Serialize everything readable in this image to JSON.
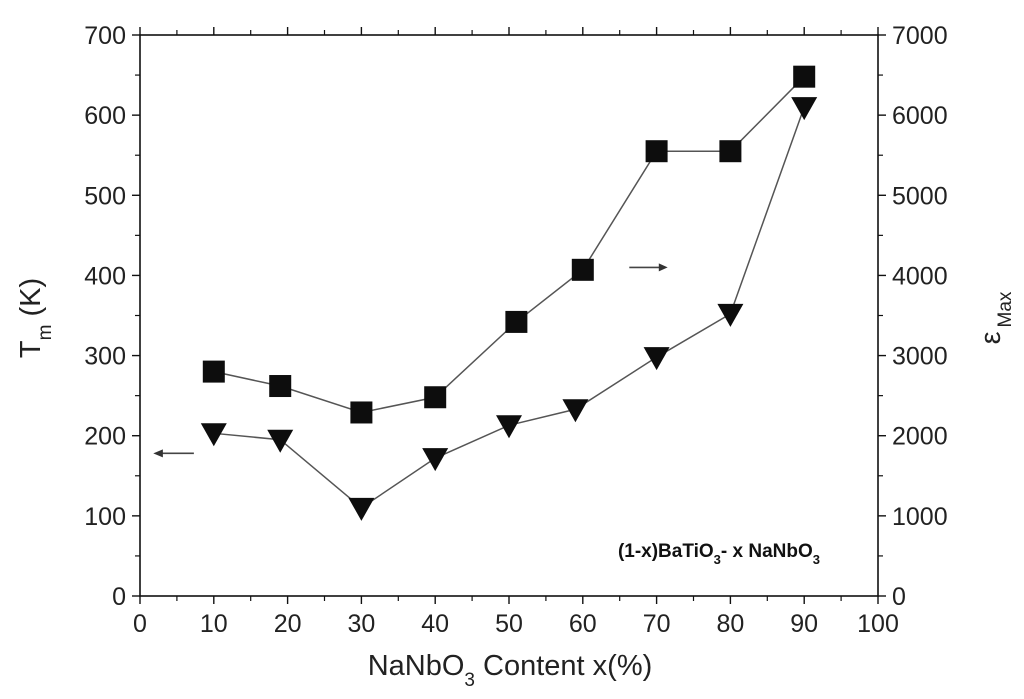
{
  "chart_data": {
    "type": "scatter",
    "xlabel": "NaNbO3 Content x(%)",
    "xlabel_parts": {
      "pre": "NaNbO",
      "sub": "3",
      "post": " Content x(%)"
    },
    "ylabel_left": {
      "main": "T",
      "sub": "m",
      "suffix": " (K)"
    },
    "ylabel_right": {
      "main": "ε",
      "sub": "Max"
    },
    "xlim": [
      0,
      100
    ],
    "ylim_left": [
      0,
      700
    ],
    "ylim_right": [
      0,
      7000
    ],
    "x_ticks": [
      "0",
      "10",
      "20",
      "30",
      "40",
      "50",
      "60",
      "70",
      "80",
      "90",
      "100"
    ],
    "y_left_ticks": [
      "0",
      "100",
      "200",
      "300",
      "400",
      "500",
      "600",
      "700"
    ],
    "y_right_ticks": [
      "0",
      "1000",
      "2000",
      "3000",
      "4000",
      "5000",
      "6000",
      "7000"
    ],
    "annotation": {
      "parts": [
        {
          "text": "(1-x)BaTiO",
          "sub": false
        },
        {
          "text": "3",
          "sub": true
        },
        {
          "text": "- x NaNbO",
          "sub": false
        },
        {
          "text": "3",
          "sub": true
        }
      ]
    },
    "series": [
      {
        "marker": "square",
        "axis": "right",
        "x": [
          10,
          19,
          30,
          40,
          51,
          60,
          70,
          80,
          90
        ],
        "values": [
          2800,
          2620,
          2290,
          2480,
          3420,
          4070,
          5550,
          5550,
          6480
        ]
      },
      {
        "marker": "triangle-down",
        "axis": "left",
        "x": [
          10,
          19,
          30,
          40,
          50,
          59,
          70,
          80,
          90
        ],
        "values": [
          203,
          195,
          110,
          172,
          213,
          233,
          298,
          352,
          610
        ]
      }
    ],
    "grid": false,
    "legend": "none"
  }
}
